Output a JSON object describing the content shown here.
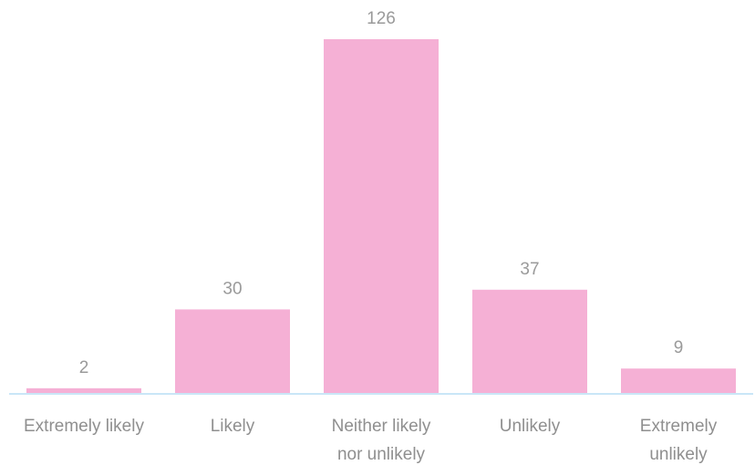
{
  "chart_data": {
    "type": "bar",
    "categories": [
      [
        "Extremely likely"
      ],
      [
        "Likely"
      ],
      [
        "Neither likely",
        "nor unlikely"
      ],
      [
        "Unlikely"
      ],
      [
        "Extremely",
        "unlikely"
      ]
    ],
    "values": [
      2,
      30,
      126,
      37,
      9
    ],
    "data_labels": [
      "2",
      "30",
      "126",
      "37",
      "9"
    ],
    "title": "",
    "xlabel": "",
    "ylabel": "",
    "ylim": [
      0,
      126
    ],
    "grid": false,
    "legend": "none",
    "bar_color": "#f5b0d5",
    "axis_color": "#c9e6f7"
  }
}
